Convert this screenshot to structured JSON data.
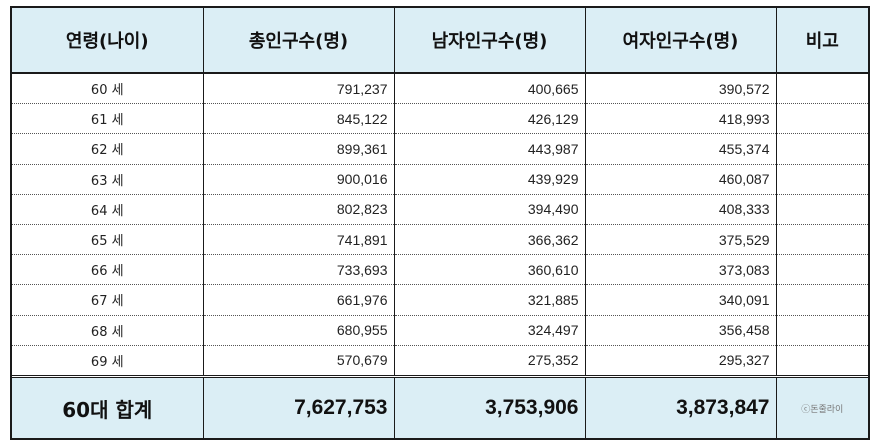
{
  "headers": {
    "age": "연령(나이)",
    "total": "총인구수(명)",
    "male": "남자인구수(명)",
    "female": "여자인구수(명)",
    "note": "비고"
  },
  "rows": [
    {
      "age": "60 세",
      "total": "791,237",
      "male": "400,665",
      "female": "390,572"
    },
    {
      "age": "61 세",
      "total": "845,122",
      "male": "426,129",
      "female": "418,993"
    },
    {
      "age": "62 세",
      "total": "899,361",
      "male": "443,987",
      "female": "455,374"
    },
    {
      "age": "63 세",
      "total": "900,016",
      "male": "439,929",
      "female": "460,087"
    },
    {
      "age": "64 세",
      "total": "802,823",
      "male": "394,490",
      "female": "408,333"
    },
    {
      "age": "65 세",
      "total": "741,891",
      "male": "366,362",
      "female": "375,529"
    },
    {
      "age": "66 세",
      "total": "733,693",
      "male": "360,610",
      "female": "373,083"
    },
    {
      "age": "67 세",
      "total": "661,976",
      "male": "321,885",
      "female": "340,091"
    },
    {
      "age": "68 세",
      "total": "680,955",
      "male": "324,497",
      "female": "356,458"
    },
    {
      "age": "69 세",
      "total": "570,679",
      "male": "275,352",
      "female": "295,327"
    }
  ],
  "footer": {
    "label": "60대 합계",
    "total": "7,627,753",
    "male": "3,753,906",
    "female": "3,873,847",
    "watermark": "ⓒ돈줄라이"
  },
  "colors": {
    "header_bg": "#dbeef5",
    "border": "#1a1a1a"
  }
}
